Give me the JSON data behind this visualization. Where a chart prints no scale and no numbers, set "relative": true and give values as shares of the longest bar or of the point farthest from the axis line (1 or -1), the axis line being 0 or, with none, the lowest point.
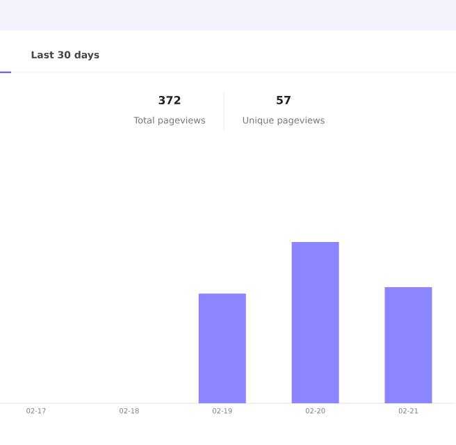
{
  "chart_data": {
    "type": "bar",
    "relative": true,
    "color": "#8b85ff",
    "categories": [
      "02-17",
      "02-18",
      "02-19",
      "02-20",
      "02-21"
    ],
    "values": [
      0,
      0,
      0.68,
      1,
      0.72
    ],
    "annotations": [
      "Last 30 days",
      "372",
      "Total pageviews",
      "57",
      "Unique pageviews"
    ]
  }
}
